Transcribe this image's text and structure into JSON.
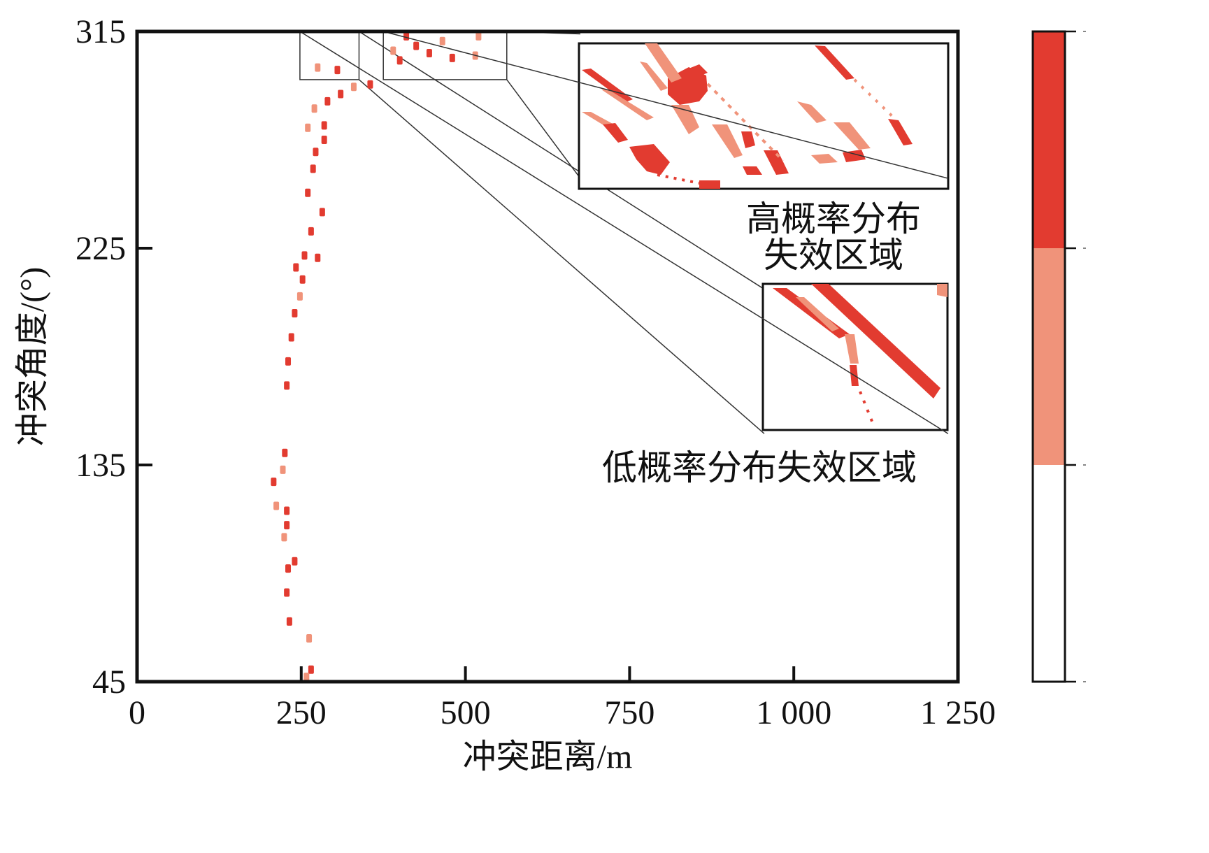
{
  "chart_data": {
    "type": "heatmap",
    "title": "",
    "xlabel": "冲突距离/m",
    "ylabel": "冲突角度/(°)",
    "xlim": [
      0,
      1250
    ],
    "ylim": [
      45,
      315
    ],
    "x_ticks": [
      {
        "value": 0,
        "label": "0"
      },
      {
        "value": 250,
        "label": "250"
      },
      {
        "value": 500,
        "label": "500"
      },
      {
        "value": 750,
        "label": "750"
      },
      {
        "value": 1000,
        "label": "1 000"
      },
      {
        "value": 1250,
        "label": "1 250"
      }
    ],
    "y_ticks": [
      {
        "value": 45,
        "label": "45"
      },
      {
        "value": 135,
        "label": "135"
      },
      {
        "value": 225,
        "label": "225"
      },
      {
        "value": 315,
        "label": "315"
      }
    ],
    "grid": false,
    "legend": "colorbar-right",
    "colors": {
      "high": "#e23b30",
      "low": "#f0937a",
      "none": "#ffffff",
      "frame": "#111111"
    },
    "colorbar_bins": [
      {
        "level": "low",
        "from": 0,
        "to": 1
      },
      {
        "level": "mid",
        "from": 1,
        "to": 2
      },
      {
        "level": "high",
        "from": 2,
        "to": 3
      }
    ],
    "failure_points": [
      {
        "d": 265,
        "a": 50,
        "level": "high"
      },
      {
        "d": 258,
        "a": 47,
        "level": "low"
      },
      {
        "d": 262,
        "a": 63,
        "level": "low"
      },
      {
        "d": 232,
        "a": 70,
        "level": "high"
      },
      {
        "d": 228,
        "a": 82,
        "level": "high"
      },
      {
        "d": 230,
        "a": 92,
        "level": "high"
      },
      {
        "d": 240,
        "a": 95,
        "level": "high"
      },
      {
        "d": 224,
        "a": 105,
        "level": "low"
      },
      {
        "d": 228,
        "a": 110,
        "level": "high"
      },
      {
        "d": 212,
        "a": 118,
        "level": "low"
      },
      {
        "d": 228,
        "a": 116,
        "level": "high"
      },
      {
        "d": 208,
        "a": 128,
        "level": "high"
      },
      {
        "d": 222,
        "a": 133,
        "level": "low"
      },
      {
        "d": 225,
        "a": 140,
        "level": "high"
      },
      {
        "d": 228,
        "a": 168,
        "level": "high"
      },
      {
        "d": 230,
        "a": 178,
        "level": "high"
      },
      {
        "d": 235,
        "a": 188,
        "level": "high"
      },
      {
        "d": 240,
        "a": 198,
        "level": "high"
      },
      {
        "d": 248,
        "a": 205,
        "level": "low"
      },
      {
        "d": 252,
        "a": 212,
        "level": "high"
      },
      {
        "d": 242,
        "a": 217,
        "level": "high"
      },
      {
        "d": 255,
        "a": 222,
        "level": "high"
      },
      {
        "d": 275,
        "a": 221,
        "level": "high"
      },
      {
        "d": 265,
        "a": 232,
        "level": "high"
      },
      {
        "d": 282,
        "a": 240,
        "level": "high"
      },
      {
        "d": 260,
        "a": 248,
        "level": "high"
      },
      {
        "d": 268,
        "a": 258,
        "level": "high"
      },
      {
        "d": 272,
        "a": 265,
        "level": "high"
      },
      {
        "d": 285,
        "a": 270,
        "level": "high"
      },
      {
        "d": 260,
        "a": 275,
        "level": "low"
      },
      {
        "d": 285,
        "a": 276,
        "level": "high"
      },
      {
        "d": 270,
        "a": 283,
        "level": "low"
      },
      {
        "d": 290,
        "a": 286,
        "level": "high"
      },
      {
        "d": 310,
        "a": 289,
        "level": "high"
      },
      {
        "d": 330,
        "a": 292,
        "level": "low"
      },
      {
        "d": 355,
        "a": 293,
        "level": "high"
      },
      {
        "d": 305,
        "a": 299,
        "level": "high"
      },
      {
        "d": 275,
        "a": 300,
        "level": "low"
      },
      {
        "d": 425,
        "a": 309,
        "level": "high"
      },
      {
        "d": 410,
        "a": 313,
        "level": "high"
      },
      {
        "d": 390,
        "a": 307,
        "level": "low"
      },
      {
        "d": 465,
        "a": 311,
        "level": "low"
      },
      {
        "d": 445,
        "a": 306,
        "level": "high"
      },
      {
        "d": 480,
        "a": 304,
        "level": "high"
      },
      {
        "d": 400,
        "a": 303,
        "level": "high"
      },
      {
        "d": 515,
        "a": 305,
        "level": "low"
      },
      {
        "d": 520,
        "a": 313,
        "level": "low"
      }
    ],
    "insets": [
      {
        "region_d": [
          248,
          338
        ],
        "region_a": [
          295,
          315
        ],
        "zoom_d": [
          955,
          1235
        ],
        "zoom_a": [
          148,
          208
        ],
        "label": "低概率分布失效区域"
      },
      {
        "region_d": [
          375,
          563
        ],
        "region_a": [
          295,
          315
        ],
        "zoom_d": [
          675,
          1235
        ],
        "zoom_a": [
          254,
          314
        ],
        "label": "高概率分布失效区域"
      }
    ],
    "annotations": {
      "high_line1": "高概率分布",
      "high_line2": "失效区域",
      "low": "低概率分布失效区域"
    }
  }
}
